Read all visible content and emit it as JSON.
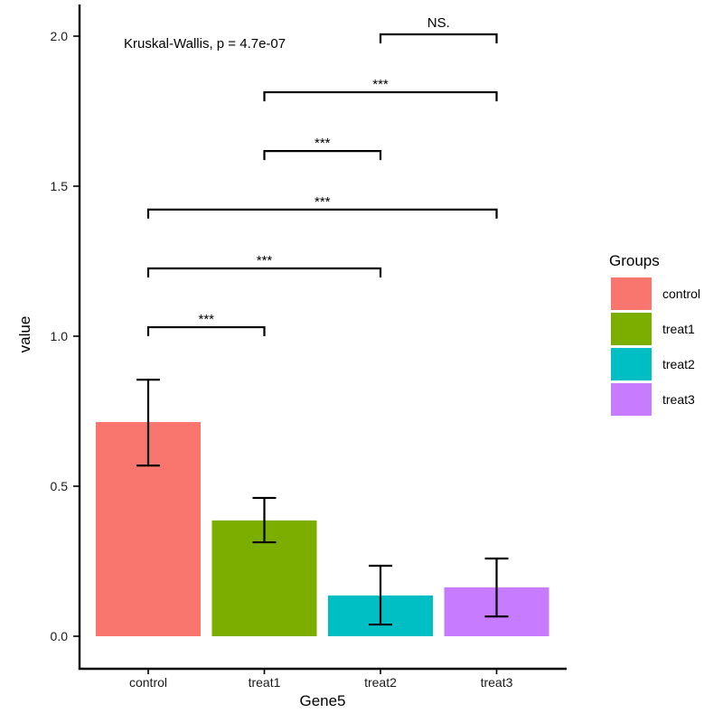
{
  "chart_data": {
    "type": "bar",
    "title": "",
    "xlabel": "Gene5",
    "ylabel": "value",
    "ylim": [
      -0.11,
      2.1
    ],
    "yticks": [
      0.0,
      0.5,
      1.0,
      1.5,
      2.0
    ],
    "ytick_labels": [
      "0.0",
      "0.5",
      "1.0",
      "1.5",
      "2.0"
    ],
    "grid": false,
    "categories": [
      "control",
      "treat1",
      "treat2",
      "treat3"
    ],
    "values": [
      0.714,
      0.386,
      0.136,
      0.163
    ],
    "error_low": [
      0.569,
      0.313,
      0.039,
      0.066
    ],
    "error_high": [
      0.855,
      0.461,
      0.235,
      0.259
    ],
    "colors": [
      "#F8766D",
      "#7CAE00",
      "#00BFC4",
      "#C77CFF"
    ],
    "annotation": "Kruskal-Wallis, p = 4.7e-07",
    "comparisons": [
      {
        "from": "control",
        "to": "treat1",
        "y": 1.03,
        "label": "***"
      },
      {
        "from": "control",
        "to": "treat2",
        "y": 1.226,
        "label": "***"
      },
      {
        "from": "control",
        "to": "treat3",
        "y": 1.422,
        "label": "***"
      },
      {
        "from": "treat1",
        "to": "treat2",
        "y": 1.617,
        "label": "***"
      },
      {
        "from": "treat1",
        "to": "treat3",
        "y": 1.813,
        "label": "***"
      },
      {
        "from": "treat2",
        "to": "treat3",
        "y": 2.006,
        "label": "NS."
      }
    ],
    "legend": {
      "title": "Groups",
      "position": "right",
      "entries": [
        "control",
        "treat1",
        "treat2",
        "treat3"
      ]
    }
  }
}
